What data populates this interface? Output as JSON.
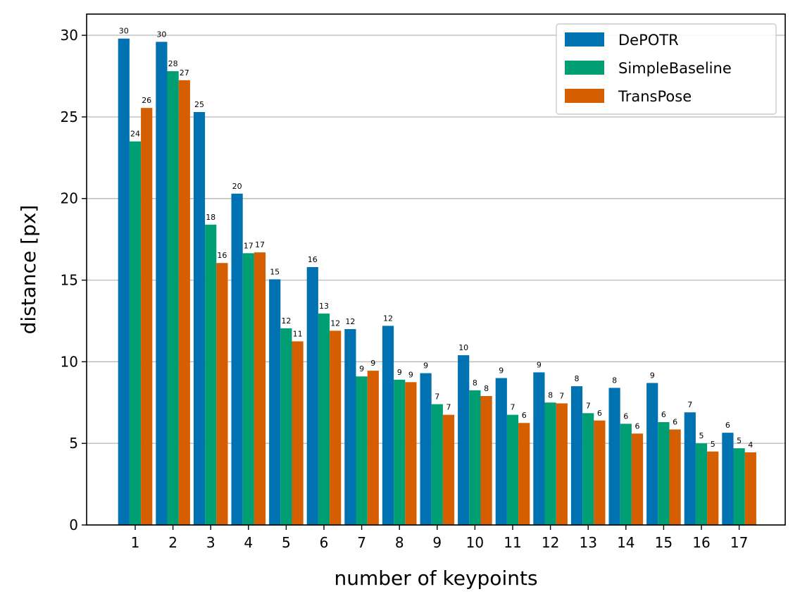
{
  "chart_data": {
    "type": "bar",
    "xlabel": "number of keypoints",
    "ylabel": "distance [px]",
    "ylim": [
      0,
      31.3
    ],
    "yticks": [
      0,
      5,
      10,
      15,
      20,
      25,
      30
    ],
    "grid": "horizontal",
    "legend_position": "top-right",
    "categories": [
      "1",
      "2",
      "3",
      "4",
      "5",
      "6",
      "7",
      "8",
      "9",
      "10",
      "11",
      "12",
      "13",
      "14",
      "15",
      "16",
      "17"
    ],
    "series": [
      {
        "name": "DePOTR",
        "color": "#0072b2",
        "values": [
          29.8,
          29.6,
          25.3,
          20.3,
          15.05,
          15.8,
          12.0,
          12.2,
          9.3,
          10.4,
          9.0,
          9.35,
          8.5,
          8.4,
          8.7,
          6.9,
          5.65
        ],
        "labels": [
          "30",
          "30",
          "25",
          "20",
          "15",
          "16",
          "12",
          "12",
          "9",
          "10",
          "9",
          "9",
          "8",
          "8",
          "9",
          "7",
          "6"
        ]
      },
      {
        "name": "SimpleBaseline",
        "color": "#009e73",
        "values": [
          23.5,
          27.8,
          18.4,
          16.65,
          12.05,
          12.95,
          9.1,
          8.9,
          7.4,
          8.25,
          6.75,
          7.5,
          6.85,
          6.2,
          6.3,
          5.0,
          4.7
        ],
        "labels": [
          "24",
          "28",
          "18",
          "17",
          "12",
          "13",
          "9",
          "9",
          "7",
          "8",
          "7",
          "8",
          "7",
          "6",
          "6",
          "5",
          "5"
        ]
      },
      {
        "name": "TransPose",
        "color": "#d55e00",
        "values": [
          25.55,
          27.25,
          16.05,
          16.7,
          11.25,
          11.9,
          9.45,
          8.75,
          6.75,
          7.9,
          6.25,
          7.45,
          6.4,
          5.6,
          5.85,
          4.5,
          4.45
        ],
        "labels": [
          "26",
          "27",
          "16",
          "17",
          "11",
          "12",
          "9",
          "9",
          "7",
          "8",
          "6",
          "7",
          "6",
          "6",
          "6",
          "5",
          "4"
        ]
      }
    ]
  }
}
